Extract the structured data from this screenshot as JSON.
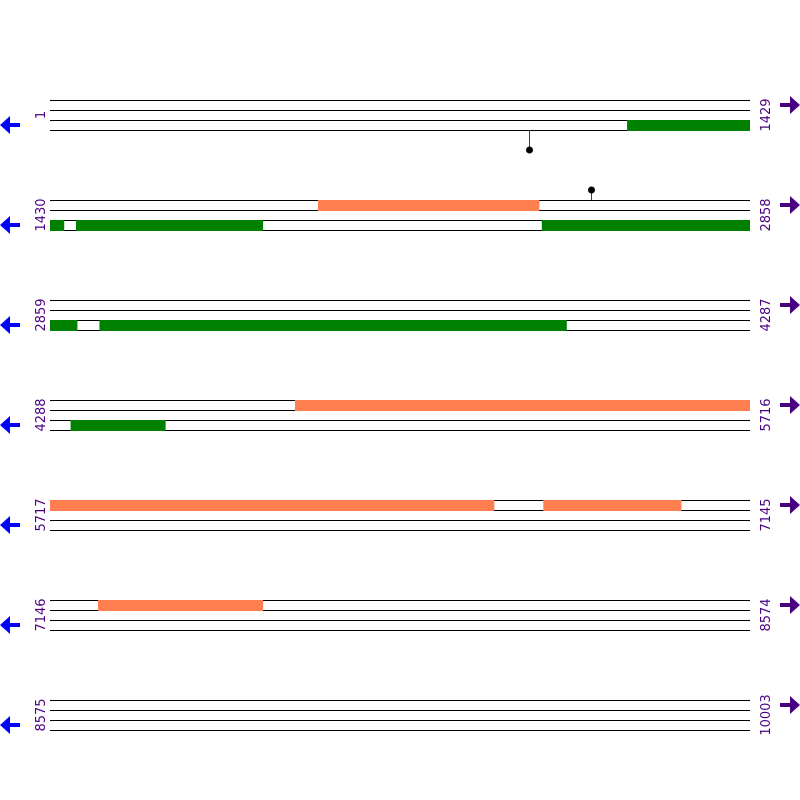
{
  "colors": {
    "line": "#000000",
    "forward_feature": "#ff7f50",
    "reverse_feature": "#008000",
    "number": "#4b0082",
    "forward_arrow": "#4b0082",
    "reverse_arrow": "#0000ff",
    "marker_stem": "#cc0000",
    "marker_head": "#000000"
  },
  "icons": {
    "forward": "right-arrow-icon",
    "reverse": "left-arrow-icon"
  },
  "rows": [
    {
      "start": "1",
      "end": "1429",
      "start_pos": 1,
      "end_pos": 1429,
      "features": [
        {
          "strand": "reverse",
          "from": 1179,
          "to": 1429
        }
      ],
      "markers": [
        {
          "pos": 979,
          "side": "below"
        }
      ]
    },
    {
      "start": "1430",
      "end": "2858",
      "start_pos": 1430,
      "end_pos": 2858,
      "features": [
        {
          "strand": "forward",
          "from": 1977,
          "to": 2428
        },
        {
          "strand": "reverse",
          "from": 1430,
          "to": 1458
        },
        {
          "strand": "reverse",
          "from": 1483,
          "to": 1864
        },
        {
          "strand": "reverse",
          "from": 2434,
          "to": 2858
        }
      ],
      "markers": [
        {
          "pos": 2534,
          "side": "above"
        }
      ]
    },
    {
      "start": "2859",
      "end": "4287",
      "start_pos": 2859,
      "end_pos": 4287,
      "features": [
        {
          "strand": "reverse",
          "from": 2859,
          "to": 2914
        },
        {
          "strand": "reverse",
          "from": 2960,
          "to": 3913
        }
      ],
      "markers": []
    },
    {
      "start": "4288",
      "end": "5716",
      "start_pos": 4288,
      "end_pos": 5716,
      "features": [
        {
          "strand": "forward",
          "from": 4788,
          "to": 5716
        },
        {
          "strand": "reverse",
          "from": 4330,
          "to": 4523
        }
      ],
      "markers": []
    },
    {
      "start": "5717",
      "end": "7145",
      "start_pos": 5717,
      "end_pos": 7145,
      "features": [
        {
          "strand": "forward",
          "from": 5717,
          "to": 6623
        },
        {
          "strand": "forward",
          "from": 6724,
          "to": 7005
        }
      ],
      "markers": []
    },
    {
      "start": "7146",
      "end": "8574",
      "start_pos": 7146,
      "end_pos": 8574,
      "features": [
        {
          "strand": "forward",
          "from": 7244,
          "to": 7580
        }
      ],
      "markers": []
    },
    {
      "start": "8575",
      "end": "10003",
      "start_pos": 8575,
      "end_pos": 10003,
      "features": [],
      "markers": []
    }
  ]
}
